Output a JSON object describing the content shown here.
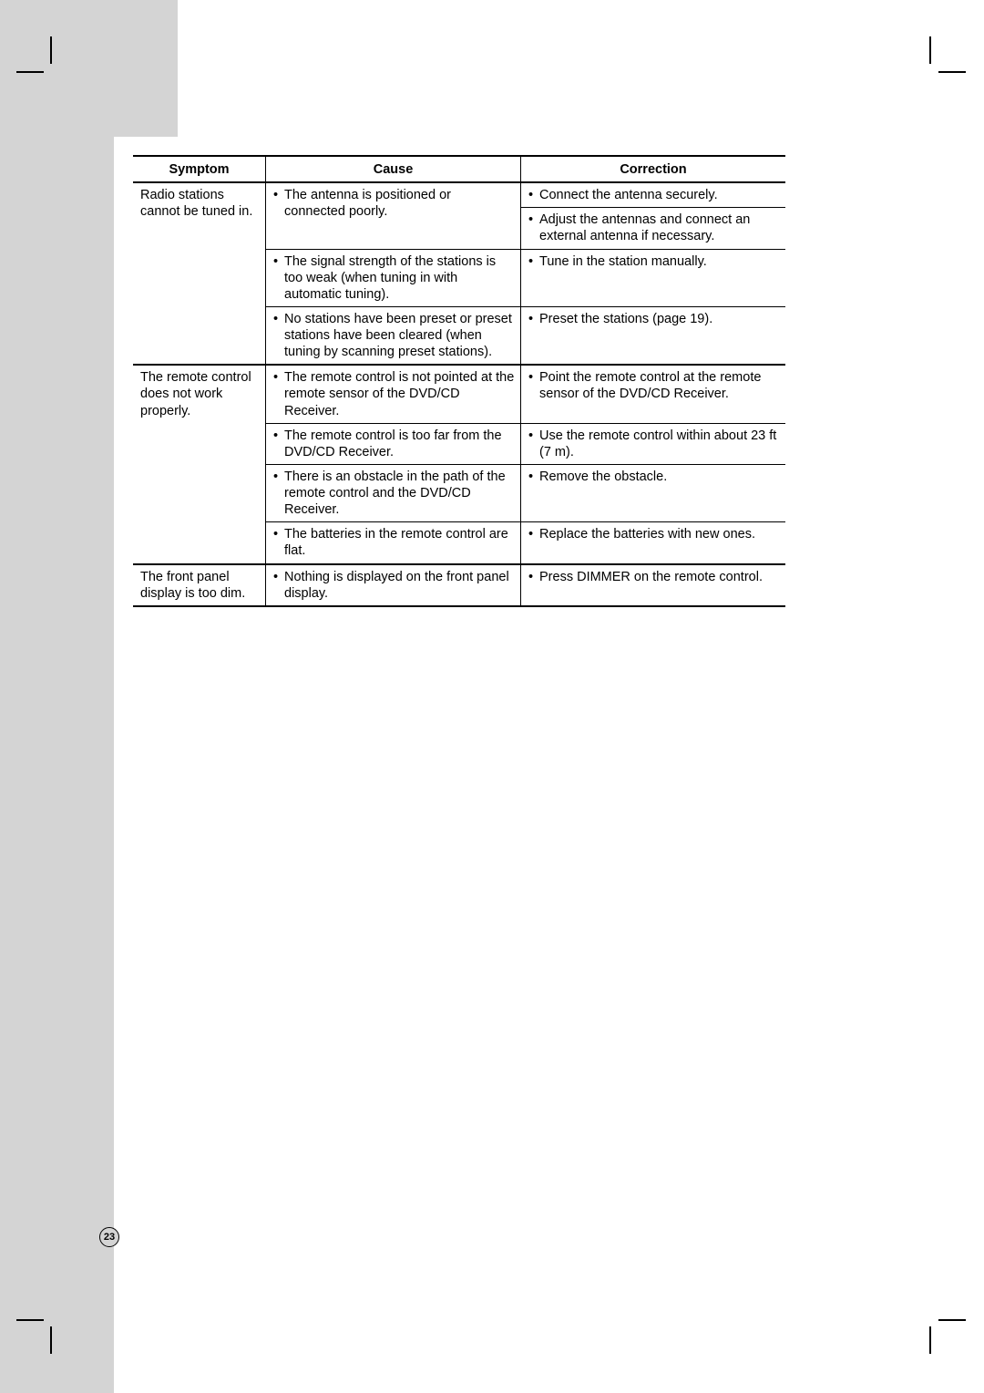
{
  "page_number": "23",
  "colors": {
    "grey_bar": "#d4d4d4",
    "border": "#000000",
    "background": "#ffffff",
    "text": "#000000"
  },
  "table": {
    "type": "table",
    "headers": {
      "symptom": "Symptom",
      "cause": "Cause",
      "correction": "Correction"
    },
    "groups": [
      {
        "symptom": "Radio stations cannot be tuned in.",
        "rows": [
          {
            "cause": "The antenna is positioned or  connected poorly.",
            "corrections": [
              "Connect the antenna securely.",
              "Adjust the antennas and connect an external antenna if necessary."
            ]
          },
          {
            "cause": "The signal strength of the stations is too weak (when tuning in with automatic tuning).",
            "corrections": [
              "Tune in the station manually."
            ]
          },
          {
            "cause": "No stations have been preset or preset stations have been cleared (when tuning by scanning preset stations).",
            "corrections": [
              "Preset the stations (page 19)."
            ]
          }
        ]
      },
      {
        "symptom": "The remote control does not work properly.",
        "rows": [
          {
            "cause": "The remote control is not pointed at the remote sensor of the DVD/CD Receiver.",
            "corrections": [
              "Point the remote control at the remote sensor of the DVD/CD Receiver."
            ]
          },
          {
            "cause": "The remote control is too far from the DVD/CD Receiver.",
            "corrections": [
              "Use the remote control within about 23 ft (7 m)."
            ]
          },
          {
            "cause": "There is an obstacle in the path of the remote control and the DVD/CD Receiver.",
            "corrections": [
              "Remove the obstacle."
            ]
          },
          {
            "cause": "The batteries in the remote control are flat.",
            "corrections": [
              "Replace the batteries with new ones."
            ]
          }
        ]
      },
      {
        "symptom": "The front panel display is too dim.",
        "rows": [
          {
            "cause": "Nothing is displayed on the front panel display.",
            "corrections": [
              "Press DIMMER on the remote control."
            ]
          }
        ]
      }
    ]
  }
}
